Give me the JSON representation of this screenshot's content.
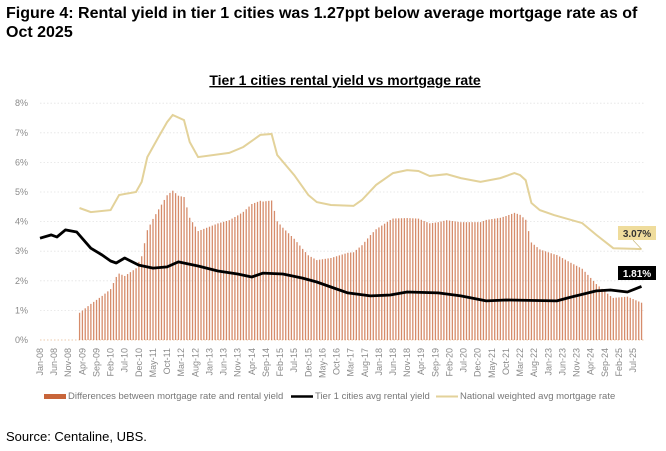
{
  "figure_title": "Figure 4: Rental yield in tier 1 cities was 1.27ppt below average mortgage rate as of Oct 2025",
  "source": "Source: Centaline, UBS.",
  "colors": {
    "bars": "#c8653a",
    "rental_yield": "#000000",
    "mortgage_rate": "#e3d29a",
    "mortgage_label_bg": "#efdc9c",
    "rental_label_bg": "#000000"
  },
  "chart_data": {
    "type": "bar+line",
    "title": "Tier 1 cities rental yield vs mortgage rate",
    "xlabel": "",
    "ylabel": "",
    "ylim": [
      0,
      8
    ],
    "y_ticks": [
      "0%",
      "1%",
      "2%",
      "3%",
      "4%",
      "5%",
      "6%",
      "7%",
      "8%"
    ],
    "x_range": [
      "2008-01",
      "2025-10"
    ],
    "x_ticks": [
      "Jan-08",
      "Jun-08",
      "Nov-08",
      "Apr-09",
      "Sep-09",
      "Feb-10",
      "Jul-10",
      "Dec-10",
      "May-11",
      "Oct-11",
      "Mar-12",
      "Aug-12",
      "Jan-13",
      "Jun-13",
      "Nov-13",
      "Apr-14",
      "Sep-14",
      "Feb-15",
      "Jul-15",
      "Dec-15",
      "May-16",
      "Oct-16",
      "Mar-17",
      "Aug-17",
      "Jan-18",
      "Jun-18",
      "Nov-18",
      "Apr-19",
      "Sep-19",
      "Feb-20",
      "Jul-20",
      "Dec-20",
      "May-21",
      "Oct-21",
      "Mar-22",
      "Aug-22",
      "Jan-23",
      "Jun-23",
      "Nov-23",
      "Apr-24",
      "Sep-24",
      "Feb-25",
      "Jul-25"
    ],
    "grid": "horizontal dotted",
    "legend_placement": "bottom",
    "series": [
      {
        "name": "Differences between mortgage rate and rental yield",
        "type": "bar",
        "frequency": "monthly",
        "definition": "mortgage rate minus rental yield",
        "start": "2009-03",
        "end": "2025-10"
      },
      {
        "name": "Tier 1 cities avg rental yield",
        "type": "line",
        "points": [
          [
            "2008-01",
            3.44
          ],
          [
            "2008-05",
            3.55
          ],
          [
            "2008-07",
            3.48
          ],
          [
            "2008-10",
            3.72
          ],
          [
            "2009-02",
            3.65
          ],
          [
            "2009-07",
            3.1
          ],
          [
            "2009-11",
            2.87
          ],
          [
            "2010-02",
            2.67
          ],
          [
            "2010-04",
            2.6
          ],
          [
            "2010-07",
            2.77
          ],
          [
            "2010-12",
            2.53
          ],
          [
            "2011-05",
            2.43
          ],
          [
            "2011-10",
            2.47
          ],
          [
            "2012-02",
            2.64
          ],
          [
            "2012-09",
            2.5
          ],
          [
            "2013-04",
            2.33
          ],
          [
            "2013-11",
            2.23
          ],
          [
            "2014-04",
            2.13
          ],
          [
            "2014-08",
            2.26
          ],
          [
            "2015-03",
            2.23
          ],
          [
            "2015-10",
            2.09
          ],
          [
            "2016-03",
            1.96
          ],
          [
            "2016-08",
            1.79
          ],
          [
            "2017-02",
            1.59
          ],
          [
            "2017-10",
            1.49
          ],
          [
            "2018-05",
            1.52
          ],
          [
            "2018-11",
            1.62
          ],
          [
            "2019-10",
            1.59
          ],
          [
            "2020-06",
            1.49
          ],
          [
            "2021-03",
            1.32
          ],
          [
            "2021-10",
            1.35
          ],
          [
            "2023-04",
            1.32
          ],
          [
            "2023-09",
            1.45
          ],
          [
            "2024-06",
            1.66
          ],
          [
            "2024-11",
            1.69
          ],
          [
            "2025-05",
            1.62
          ],
          [
            "2025-10",
            1.81
          ]
        ]
      },
      {
        "name": "National weighted avg mortgage rate",
        "type": "line",
        "points": [
          [
            "2009-03",
            4.46
          ],
          [
            "2009-07",
            4.32
          ],
          [
            "2010-02",
            4.39
          ],
          [
            "2010-05",
            4.9
          ],
          [
            "2010-11",
            5.0
          ],
          [
            "2011-01",
            5.34
          ],
          [
            "2011-03",
            6.18
          ],
          [
            "2011-07",
            6.86
          ],
          [
            "2011-10",
            7.36
          ],
          [
            "2011-12",
            7.6
          ],
          [
            "2012-04",
            7.43
          ],
          [
            "2012-06",
            6.69
          ],
          [
            "2012-09",
            6.18
          ],
          [
            "2013-08",
            6.32
          ],
          [
            "2014-01",
            6.52
          ],
          [
            "2014-07",
            6.93
          ],
          [
            "2014-11",
            6.96
          ],
          [
            "2015-01",
            6.25
          ],
          [
            "2015-07",
            5.57
          ],
          [
            "2015-12",
            4.9
          ],
          [
            "2016-03",
            4.66
          ],
          [
            "2016-08",
            4.56
          ],
          [
            "2017-04",
            4.53
          ],
          [
            "2017-07",
            4.73
          ],
          [
            "2017-12",
            5.24
          ],
          [
            "2018-06",
            5.64
          ],
          [
            "2018-11",
            5.74
          ],
          [
            "2019-03",
            5.71
          ],
          [
            "2019-07",
            5.54
          ],
          [
            "2020-01",
            5.6
          ],
          [
            "2020-06",
            5.47
          ],
          [
            "2021-01",
            5.34
          ],
          [
            "2021-08",
            5.47
          ],
          [
            "2022-01",
            5.64
          ],
          [
            "2022-03",
            5.57
          ],
          [
            "2022-05",
            5.4
          ],
          [
            "2022-07",
            4.63
          ],
          [
            "2022-10",
            4.39
          ],
          [
            "2023-03",
            4.22
          ],
          [
            "2024-01",
            3.95
          ],
          [
            "2024-06",
            3.55
          ],
          [
            "2024-12",
            3.1
          ],
          [
            "2025-10",
            3.07
          ]
        ]
      }
    ],
    "annotations": [
      {
        "text": "3.07%",
        "series": "National weighted avg mortgage rate",
        "at": "2025-10"
      },
      {
        "text": "1.81%",
        "series": "Tier 1 cities avg rental yield",
        "at": "2025-10"
      }
    ]
  }
}
